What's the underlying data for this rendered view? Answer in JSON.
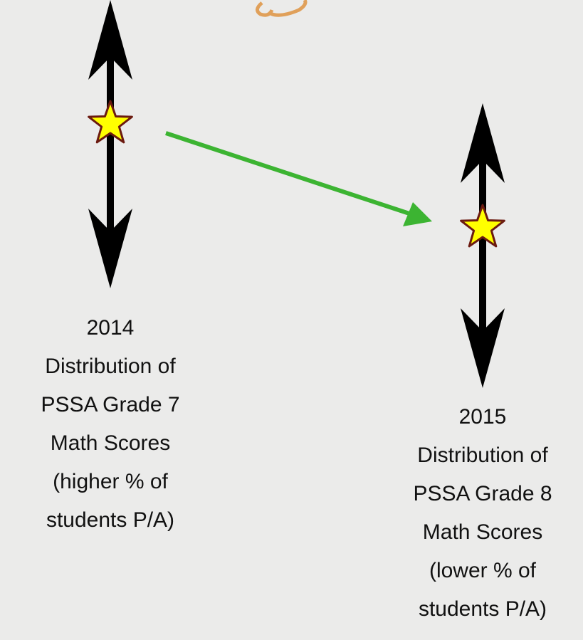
{
  "nodes": [
    {
      "lines": [
        "2014",
        "Distribution of",
        "PSSA Grade 7",
        "Math Scores",
        "(higher % of",
        "students P/A)"
      ]
    },
    {
      "lines": [
        "2015",
        "Distribution of",
        "PSSA Grade 8",
        "Math Scores",
        "(lower % of",
        "students P/A)"
      ]
    }
  ]
}
